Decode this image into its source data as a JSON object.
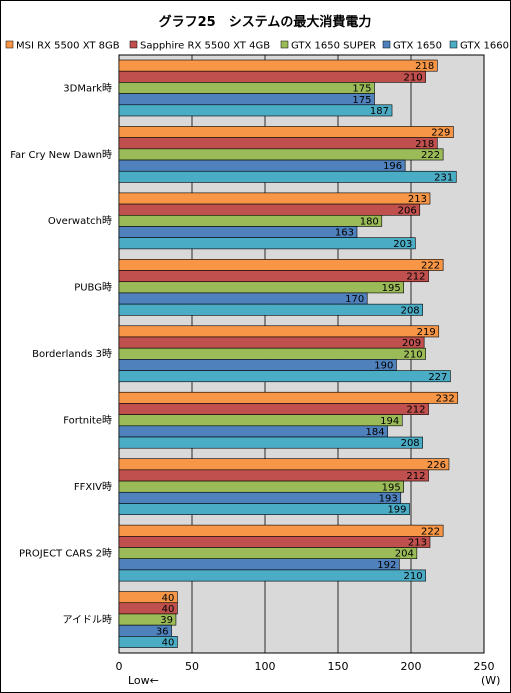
{
  "chart_data": {
    "type": "bar",
    "orientation": "horizontal",
    "title": "グラフ25　システムの最大消費電力",
    "unit": "(W)",
    "axis_note": "Low←",
    "xlim": [
      0,
      250
    ],
    "xticks": [
      0,
      50,
      100,
      150,
      200,
      250
    ],
    "grid": true,
    "legend_position": "top",
    "categories": [
      "3DMark時",
      "Far Cry New Dawn時",
      "Overwatch時",
      "PUBG時",
      "Borderlands 3時",
      "Fortnite時",
      "FFXIV時",
      "PROJECT CARS 2時",
      "アイドル時"
    ],
    "series": [
      {
        "name": "MSI RX 5500 XT 8GB",
        "color": "#f79646",
        "values": [
          218,
          229,
          213,
          222,
          219,
          232,
          226,
          222,
          40
        ]
      },
      {
        "name": "Sapphire RX 5500 XT 4GB",
        "color": "#c0504d",
        "values": [
          210,
          218,
          206,
          212,
          209,
          212,
          212,
          213,
          40
        ]
      },
      {
        "name": "GTX 1650 SUPER",
        "color": "#9bbb59",
        "values": [
          175,
          222,
          180,
          195,
          210,
          194,
          195,
          204,
          39
        ]
      },
      {
        "name": "GTX 1650",
        "color": "#4f81bd",
        "values": [
          175,
          196,
          163,
          170,
          190,
          184,
          193,
          192,
          36
        ]
      },
      {
        "name": "GTX 1660",
        "color": "#4bacc6",
        "values": [
          187,
          231,
          203,
          208,
          227,
          208,
          199,
          210,
          40
        ]
      }
    ]
  }
}
